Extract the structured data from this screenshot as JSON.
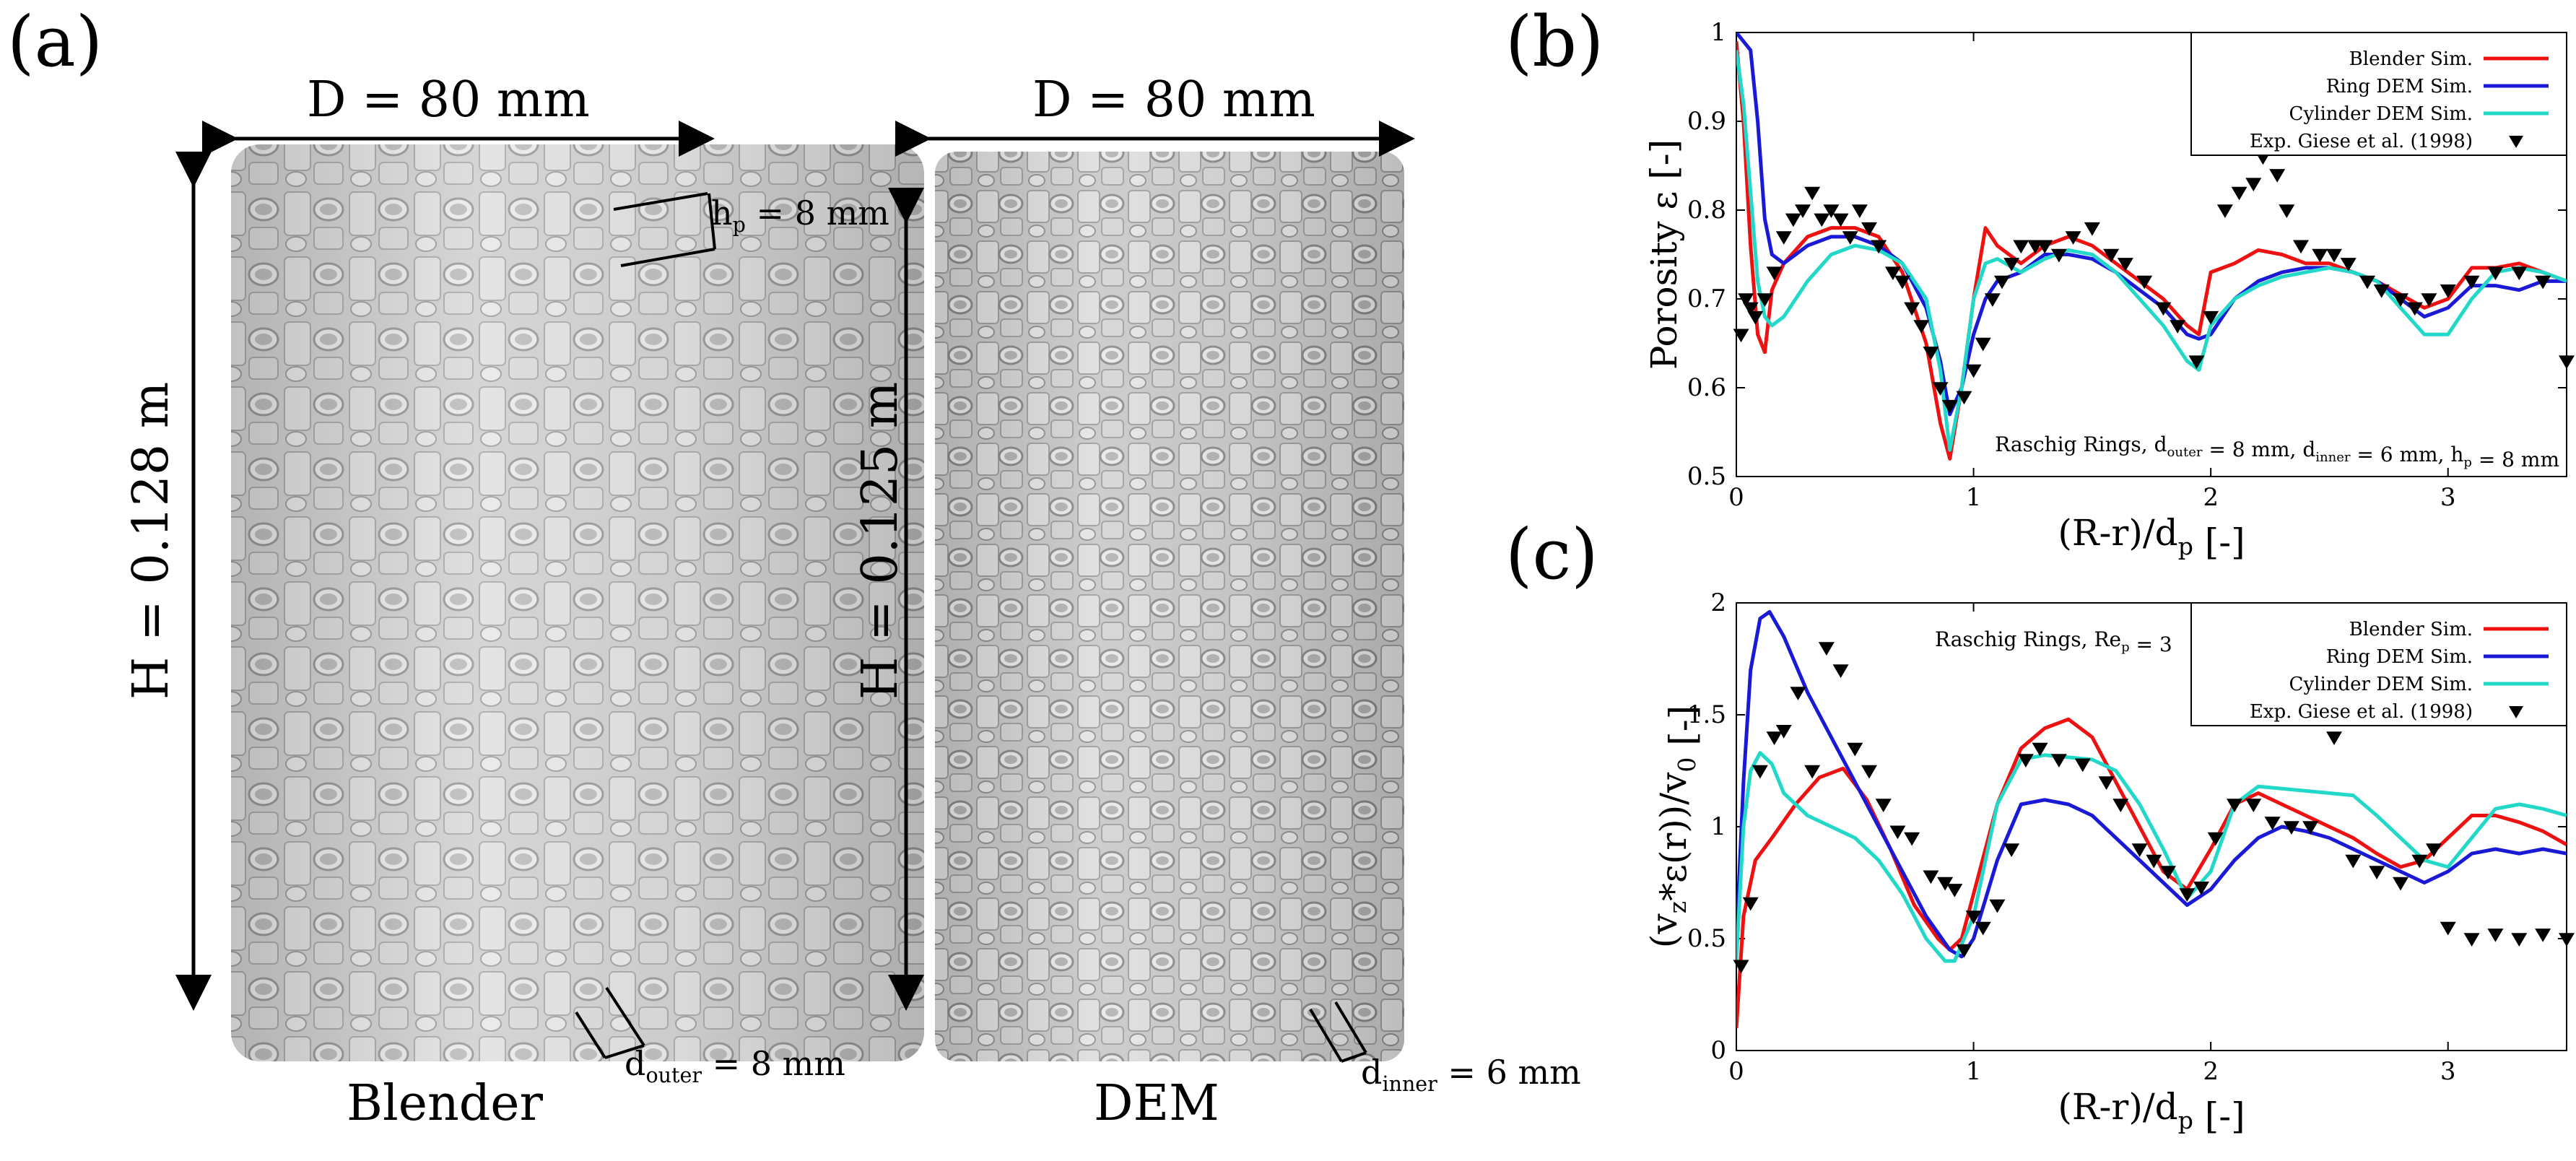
{
  "figure": {
    "panels": {
      "a": "(a)",
      "b": "(b)",
      "c": "(c)"
    },
    "left_column": {
      "diameter_label": "D = 80 mm",
      "height_label": "H = 0.128 m",
      "hp_label_main": "h",
      "hp_label_sub": "p",
      "hp_label_tail": " = 8 mm",
      "douter_main": "d",
      "douter_sub": "outer",
      "douter_tail": " = 8 mm",
      "caption": "Blender"
    },
    "right_column": {
      "diameter_label": "D = 80 mm",
      "height_label": "H = 0.125 m",
      "dinner_main": "d",
      "dinner_sub": "inner",
      "dinner_tail": " = 6 mm",
      "caption": "DEM"
    }
  },
  "chart_data": [
    {
      "id": "b",
      "type": "line",
      "xlabel": "(R-r)/d_p [-]",
      "ylabel": "Porosity ε [-]",
      "annotation": "Raschig Rings, d_outer = 8 mm, d_inner = 6 mm, h_p = 8 mm",
      "xlim": [
        0,
        3.5
      ],
      "ylim": [
        0.5,
        1.0
      ],
      "xticks": [
        0,
        1,
        2,
        3
      ],
      "yticks": [
        0.5,
        0.6,
        0.7,
        0.8,
        0.9,
        1.0
      ],
      "ytick_labels": [
        "0.5",
        "0.6",
        "0.7",
        "0.8",
        "0.9",
        "1"
      ],
      "legend": [
        "Blender Sim.",
        "Ring DEM Sim.",
        "Cylinder DEM Sim.",
        "Exp. Giese et al. (1998)"
      ],
      "series": [
        {
          "name": "Blender Sim.",
          "color": "#ee1111",
          "x": [
            0,
            0.03,
            0.06,
            0.09,
            0.12,
            0.15,
            0.2,
            0.3,
            0.4,
            0.5,
            0.6,
            0.7,
            0.8,
            0.86,
            0.9,
            0.95,
            1.0,
            1.05,
            1.1,
            1.2,
            1.3,
            1.4,
            1.5,
            1.6,
            1.7,
            1.8,
            1.9,
            1.95,
            2.0,
            2.1,
            2.2,
            2.3,
            2.4,
            2.5,
            2.6,
            2.7,
            2.8,
            2.9,
            3.0,
            3.1,
            3.2,
            3.3,
            3.4,
            3.5
          ],
          "y": [
            0.99,
            0.9,
            0.76,
            0.66,
            0.64,
            0.71,
            0.74,
            0.77,
            0.78,
            0.78,
            0.77,
            0.73,
            0.65,
            0.56,
            0.52,
            0.6,
            0.7,
            0.78,
            0.76,
            0.74,
            0.76,
            0.77,
            0.76,
            0.74,
            0.72,
            0.7,
            0.67,
            0.66,
            0.73,
            0.74,
            0.755,
            0.75,
            0.74,
            0.74,
            0.73,
            0.72,
            0.705,
            0.69,
            0.7,
            0.735,
            0.735,
            0.74,
            0.73,
            0.72
          ]
        },
        {
          "name": "Ring DEM Sim.",
          "color": "#1a1ad6",
          "x": [
            0,
            0.03,
            0.06,
            0.09,
            0.12,
            0.15,
            0.2,
            0.3,
            0.4,
            0.5,
            0.6,
            0.7,
            0.8,
            0.86,
            0.9,
            0.95,
            1.0,
            1.05,
            1.1,
            1.2,
            1.3,
            1.4,
            1.5,
            1.6,
            1.7,
            1.8,
            1.9,
            1.95,
            2.0,
            2.1,
            2.2,
            2.3,
            2.4,
            2.5,
            2.6,
            2.7,
            2.8,
            2.9,
            3.0,
            3.1,
            3.2,
            3.3,
            3.4,
            3.5
          ],
          "y": [
            1.0,
            0.99,
            0.98,
            0.9,
            0.79,
            0.75,
            0.74,
            0.76,
            0.77,
            0.77,
            0.76,
            0.74,
            0.69,
            0.63,
            0.57,
            0.6,
            0.66,
            0.7,
            0.72,
            0.73,
            0.75,
            0.75,
            0.745,
            0.73,
            0.71,
            0.69,
            0.66,
            0.655,
            0.66,
            0.7,
            0.72,
            0.73,
            0.735,
            0.735,
            0.73,
            0.72,
            0.7,
            0.68,
            0.69,
            0.715,
            0.715,
            0.71,
            0.72,
            0.72
          ]
        },
        {
          "name": "Cylinder DEM Sim.",
          "color": "#22d8c8",
          "x": [
            0,
            0.03,
            0.06,
            0.09,
            0.12,
            0.15,
            0.2,
            0.3,
            0.4,
            0.5,
            0.6,
            0.7,
            0.8,
            0.86,
            0.9,
            0.95,
            1.0,
            1.05,
            1.1,
            1.2,
            1.3,
            1.4,
            1.5,
            1.6,
            1.7,
            1.8,
            1.9,
            1.95,
            2.0,
            2.1,
            2.2,
            2.3,
            2.4,
            2.5,
            2.6,
            2.7,
            2.8,
            2.9,
            3.0,
            3.1,
            3.2,
            3.3,
            3.4,
            3.5
          ],
          "y": [
            0.98,
            0.92,
            0.82,
            0.72,
            0.68,
            0.67,
            0.68,
            0.72,
            0.75,
            0.76,
            0.755,
            0.74,
            0.7,
            0.62,
            0.53,
            0.6,
            0.7,
            0.74,
            0.745,
            0.73,
            0.745,
            0.755,
            0.75,
            0.73,
            0.7,
            0.67,
            0.63,
            0.62,
            0.67,
            0.7,
            0.715,
            0.725,
            0.73,
            0.735,
            0.73,
            0.72,
            0.69,
            0.66,
            0.66,
            0.7,
            0.73,
            0.735,
            0.73,
            0.72
          ]
        }
      ],
      "scatter": {
        "name": "Exp. Giese et al. (1998)",
        "color": "#000000",
        "points": [
          [
            0.02,
            0.66
          ],
          [
            0.04,
            0.7
          ],
          [
            0.06,
            0.69
          ],
          [
            0.08,
            0.68
          ],
          [
            0.12,
            0.7
          ],
          [
            0.16,
            0.73
          ],
          [
            0.2,
            0.77
          ],
          [
            0.24,
            0.79
          ],
          [
            0.28,
            0.8
          ],
          [
            0.32,
            0.82
          ],
          [
            0.36,
            0.79
          ],
          [
            0.4,
            0.8
          ],
          [
            0.44,
            0.79
          ],
          [
            0.48,
            0.77
          ],
          [
            0.52,
            0.8
          ],
          [
            0.56,
            0.78
          ],
          [
            0.6,
            0.76
          ],
          [
            0.66,
            0.73
          ],
          [
            0.7,
            0.72
          ],
          [
            0.74,
            0.69
          ],
          [
            0.78,
            0.67
          ],
          [
            0.82,
            0.64
          ],
          [
            0.86,
            0.6
          ],
          [
            0.9,
            0.58
          ],
          [
            0.96,
            0.59
          ],
          [
            1.0,
            0.62
          ],
          [
            1.04,
            0.65
          ],
          [
            1.08,
            0.7
          ],
          [
            1.12,
            0.72
          ],
          [
            1.16,
            0.74
          ],
          [
            1.2,
            0.76
          ],
          [
            1.26,
            0.76
          ],
          [
            1.3,
            0.76
          ],
          [
            1.36,
            0.75
          ],
          [
            1.42,
            0.77
          ],
          [
            1.5,
            0.78
          ],
          [
            1.58,
            0.75
          ],
          [
            1.64,
            0.74
          ],
          [
            1.72,
            0.72
          ],
          [
            1.8,
            0.69
          ],
          [
            1.86,
            0.67
          ],
          [
            1.94,
            0.63
          ],
          [
            2.0,
            0.68
          ],
          [
            2.06,
            0.8
          ],
          [
            2.12,
            0.82
          ],
          [
            2.18,
            0.83
          ],
          [
            2.22,
            0.86
          ],
          [
            2.28,
            0.84
          ],
          [
            2.32,
            0.8
          ],
          [
            2.38,
            0.76
          ],
          [
            2.46,
            0.75
          ],
          [
            2.52,
            0.75
          ],
          [
            2.58,
            0.74
          ],
          [
            2.66,
            0.72
          ],
          [
            2.72,
            0.71
          ],
          [
            2.8,
            0.7
          ],
          [
            2.86,
            0.69
          ],
          [
            2.92,
            0.7
          ],
          [
            3.0,
            0.71
          ],
          [
            3.1,
            0.72
          ],
          [
            3.2,
            0.73
          ],
          [
            3.3,
            0.73
          ],
          [
            3.4,
            0.72
          ],
          [
            3.5,
            0.63
          ]
        ]
      }
    },
    {
      "id": "c",
      "type": "line",
      "xlabel": "(R-r)/d_p [-]",
      "ylabel": "(v_z*ε(r))/v_0 [-]",
      "annotation": "Raschig Rings, Re_p = 3",
      "xlim": [
        0,
        3.5
      ],
      "ylim": [
        0,
        2
      ],
      "xticks": [
        0,
        1,
        2,
        3
      ],
      "yticks": [
        0,
        0.5,
        1,
        1.5,
        2
      ],
      "ytick_labels": [
        "0",
        "0.5",
        "1",
        "1.5",
        "2"
      ],
      "legend": [
        "Blender Sim.",
        "Ring DEM Sim.",
        "Cylinder DEM Sim.",
        "Exp. Giese et al. (1998)"
      ],
      "series": [
        {
          "name": "Blender Sim.",
          "color": "#ee1111",
          "x": [
            0,
            0.03,
            0.08,
            0.15,
            0.25,
            0.35,
            0.45,
            0.55,
            0.65,
            0.75,
            0.85,
            0.9,
            0.95,
            1.0,
            1.1,
            1.2,
            1.3,
            1.4,
            1.5,
            1.6,
            1.7,
            1.8,
            1.9,
            2.0,
            2.1,
            2.2,
            2.3,
            2.4,
            2.5,
            2.6,
            2.7,
            2.8,
            2.9,
            3.0,
            3.1,
            3.2,
            3.3,
            3.4,
            3.5
          ],
          "y": [
            0.1,
            0.6,
            0.85,
            0.95,
            1.1,
            1.22,
            1.26,
            1.12,
            0.9,
            0.65,
            0.5,
            0.45,
            0.5,
            0.7,
            1.1,
            1.35,
            1.44,
            1.48,
            1.4,
            1.2,
            1.0,
            0.8,
            0.72,
            0.9,
            1.1,
            1.15,
            1.1,
            1.05,
            1.0,
            0.95,
            0.88,
            0.82,
            0.85,
            0.95,
            1.05,
            1.05,
            1.02,
            0.98,
            0.92
          ]
        },
        {
          "name": "Ring DEM Sim.",
          "color": "#1a1ad6",
          "x": [
            0,
            0.03,
            0.06,
            0.1,
            0.14,
            0.2,
            0.3,
            0.4,
            0.5,
            0.6,
            0.7,
            0.8,
            0.9,
            0.95,
            1.0,
            1.1,
            1.2,
            1.3,
            1.4,
            1.5,
            1.6,
            1.7,
            1.8,
            1.9,
            2.0,
            2.1,
            2.2,
            2.3,
            2.4,
            2.5,
            2.6,
            2.7,
            2.8,
            2.9,
            3.0,
            3.1,
            3.2,
            3.3,
            3.4,
            3.5
          ],
          "y": [
            0.5,
            1.2,
            1.7,
            1.93,
            1.96,
            1.85,
            1.6,
            1.4,
            1.2,
            1.0,
            0.8,
            0.6,
            0.45,
            0.42,
            0.5,
            0.85,
            1.1,
            1.12,
            1.1,
            1.05,
            0.95,
            0.85,
            0.75,
            0.65,
            0.72,
            0.85,
            0.95,
            1.0,
            0.98,
            0.95,
            0.9,
            0.85,
            0.8,
            0.75,
            0.8,
            0.88,
            0.9,
            0.88,
            0.9,
            0.88
          ]
        },
        {
          "name": "Cylinder DEM Sim.",
          "color": "#22d8c8",
          "x": [
            0,
            0.03,
            0.06,
            0.1,
            0.15,
            0.2,
            0.3,
            0.4,
            0.5,
            0.6,
            0.7,
            0.8,
            0.88,
            0.92,
            1.0,
            1.1,
            1.2,
            1.3,
            1.4,
            1.5,
            1.6,
            1.7,
            1.8,
            1.9,
            2.0,
            2.1,
            2.2,
            2.3,
            2.4,
            2.5,
            2.6,
            2.7,
            2.8,
            2.9,
            3.0,
            3.1,
            3.2,
            3.3,
            3.4,
            3.5
          ],
          "y": [
            0.4,
            1.0,
            1.25,
            1.33,
            1.28,
            1.15,
            1.05,
            1.0,
            0.95,
            0.85,
            0.7,
            0.5,
            0.4,
            0.4,
            0.6,
            1.1,
            1.3,
            1.32,
            1.31,
            1.3,
            1.25,
            1.1,
            0.9,
            0.68,
            0.8,
            1.1,
            1.18,
            1.17,
            1.16,
            1.15,
            1.14,
            1.05,
            0.95,
            0.85,
            0.82,
            0.95,
            1.08,
            1.1,
            1.08,
            1.05
          ]
        }
      ],
      "scatter": {
        "name": "Exp. Giese et al. (1998)",
        "color": "#000000",
        "points": [
          [
            0.02,
            0.38
          ],
          [
            0.06,
            0.66
          ],
          [
            0.1,
            1.25
          ],
          [
            0.16,
            1.4
          ],
          [
            0.2,
            1.43
          ],
          [
            0.26,
            1.6
          ],
          [
            0.32,
            1.25
          ],
          [
            0.38,
            1.8
          ],
          [
            0.44,
            1.7
          ],
          [
            0.5,
            1.35
          ],
          [
            0.56,
            1.25
          ],
          [
            0.62,
            1.1
          ],
          [
            0.68,
            0.98
          ],
          [
            0.74,
            0.95
          ],
          [
            0.82,
            0.78
          ],
          [
            0.88,
            0.75
          ],
          [
            0.92,
            0.72
          ],
          [
            0.96,
            0.45
          ],
          [
            1.0,
            0.6
          ],
          [
            1.04,
            0.55
          ],
          [
            1.1,
            0.65
          ],
          [
            1.16,
            0.9
          ],
          [
            1.22,
            1.3
          ],
          [
            1.28,
            1.35
          ],
          [
            1.36,
            1.3
          ],
          [
            1.46,
            1.28
          ],
          [
            1.56,
            1.2
          ],
          [
            1.62,
            1.1
          ],
          [
            1.7,
            0.9
          ],
          [
            1.76,
            0.85
          ],
          [
            1.82,
            0.8
          ],
          [
            1.9,
            0.7
          ],
          [
            1.96,
            0.73
          ],
          [
            2.02,
            0.95
          ],
          [
            2.1,
            1.1
          ],
          [
            2.18,
            1.1
          ],
          [
            2.26,
            1.02
          ],
          [
            2.34,
            1.0
          ],
          [
            2.42,
            1.0
          ],
          [
            2.52,
            1.4
          ],
          [
            2.6,
            0.85
          ],
          [
            2.7,
            0.8
          ],
          [
            2.8,
            0.75
          ],
          [
            2.88,
            0.85
          ],
          [
            2.94,
            0.9
          ],
          [
            3.0,
            0.55
          ],
          [
            3.1,
            0.5
          ],
          [
            3.2,
            0.52
          ],
          [
            3.3,
            0.5
          ],
          [
            3.4,
            0.52
          ],
          [
            3.5,
            0.5
          ]
        ]
      }
    }
  ]
}
